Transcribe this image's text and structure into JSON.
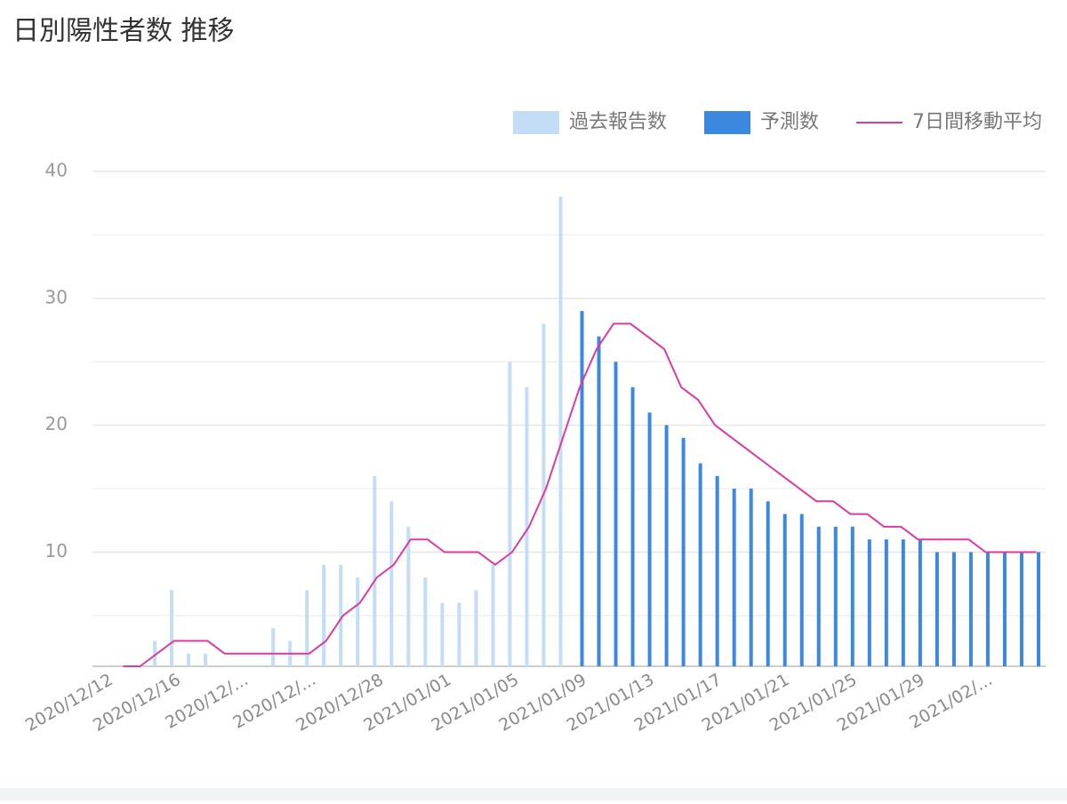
{
  "chart_data": {
    "type": "combo",
    "title": "日別陽性者数 推移",
    "categories": [
      "2020/12/12",
      null,
      null,
      null,
      "2020/12/16",
      null,
      null,
      null,
      "2020/12/...",
      null,
      null,
      null,
      "2020/12/...",
      null,
      null,
      null,
      "2020/12/28",
      null,
      null,
      null,
      "2021/01/01",
      null,
      null,
      null,
      "2021/01/05",
      null,
      null,
      null,
      "2021/01/09",
      null,
      null,
      null,
      "2021/01/13",
      null,
      null,
      null,
      "2021/01/17",
      null,
      null,
      null,
      "2021/01/21",
      null,
      null,
      null,
      "2021/01/25",
      null,
      null,
      null,
      "2021/01/29",
      null,
      null,
      null,
      "2021/02/...",
      null,
      null,
      null
    ],
    "series": [
      {
        "name": "過去報告数",
        "type": "bar",
        "color": "#c4ddf6",
        "values": [
          null,
          null,
          null,
          3,
          7,
          2,
          2,
          null,
          null,
          null,
          4,
          3,
          7,
          9,
          9,
          8,
          16,
          14,
          12,
          8,
          6,
          6,
          7,
          9,
          25,
          23,
          28,
          38,
          null,
          null,
          null,
          null,
          null,
          null,
          null,
          null,
          null,
          null,
          null,
          null,
          null,
          null,
          null,
          null,
          null,
          null,
          null,
          null,
          null,
          null,
          null,
          null,
          null,
          null,
          null,
          null
        ]
      },
      {
        "name": "予測数",
        "type": "bar",
        "color": "#3c87e0",
        "values": [
          null,
          null,
          null,
          null,
          null,
          null,
          null,
          null,
          null,
          null,
          null,
          null,
          null,
          null,
          null,
          null,
          null,
          null,
          null,
          null,
          null,
          null,
          null,
          null,
          null,
          null,
          null,
          null,
          29,
          27,
          25,
          23,
          21,
          20,
          19,
          17,
          16,
          15,
          15,
          14,
          13,
          13,
          12,
          12,
          12,
          11,
          11,
          11,
          11,
          10,
          10,
          10,
          10,
          10,
          10,
          10
        ]
      },
      {
        "name": "7日間移動平均",
        "type": "line",
        "color": "#d93b9f",
        "values": [
          null,
          1,
          1,
          2,
          3,
          3,
          3,
          2,
          2,
          2,
          2,
          2,
          2,
          3,
          5,
          6,
          8,
          9,
          11,
          11,
          10,
          10,
          10,
          9,
          10,
          12,
          15,
          19,
          23,
          26,
          28,
          28,
          27,
          26,
          23,
          22,
          20,
          19,
          18,
          17,
          16,
          15,
          14,
          14,
          13,
          13,
          12,
          12,
          11,
          11,
          11,
          11,
          10,
          10,
          10,
          10
        ]
      }
    ],
    "ylim": [
      1,
      40
    ],
    "yticks": [
      10,
      20,
      30,
      40
    ],
    "minor_yticks": [
      5,
      15,
      25,
      35
    ],
    "grid": true,
    "legend": "top-right"
  }
}
